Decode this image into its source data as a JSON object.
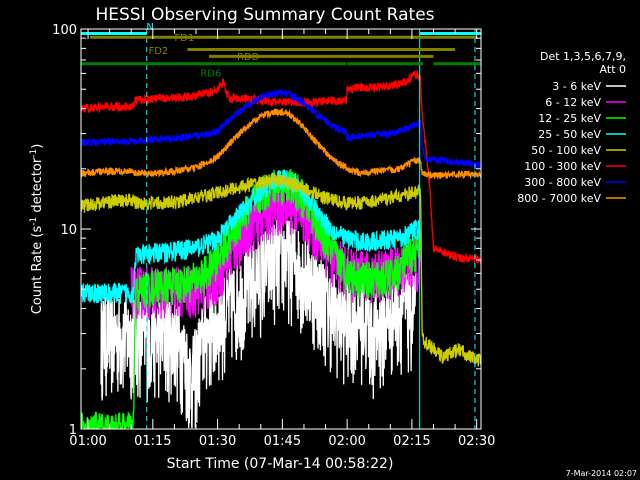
{
  "chart_data": {
    "type": "line",
    "title": "HESSI Observing Summary Count Rates",
    "xlabel": "Start Time (07-Mar-14 00:58:22)",
    "ylabel_parts": [
      "Count Rate (s",
      "-1",
      " detector",
      "-1",
      ")"
    ],
    "ylabel": "Count Rate (s-1 detector-1)",
    "y_scale": "log",
    "ylim": [
      1,
      100
    ],
    "y_ticks": [
      {
        "v": 1,
        "label": "1"
      },
      {
        "v": 10,
        "label": "10"
      },
      {
        "v": 100,
        "label": "100"
      }
    ],
    "xlim_min": [
      58.37,
      151.0
    ],
    "x_ticks": [
      {
        "t": 60,
        "label": "01:00"
      },
      {
        "t": 75,
        "label": "01:15"
      },
      {
        "t": 90,
        "label": "01:30"
      },
      {
        "t": 105,
        "label": "01:45"
      },
      {
        "t": 120,
        "label": "02:00"
      },
      {
        "t": 135,
        "label": "02:15"
      },
      {
        "t": 150,
        "label": "02:30"
      }
    ],
    "x_minor_step_min": 5,
    "legend_header": [
      "Det 1,3,5,6,7,9,",
      "Att 0"
    ],
    "legend_placement": "right",
    "series": [
      {
        "name": "3 - 6 keV",
        "color": "#ffffff",
        "points": [
          [
            58.4,
            3.0
          ],
          [
            71,
            3.0
          ],
          [
            72,
            3.0
          ],
          [
            80,
            3.0
          ],
          [
            82,
            2.5
          ],
          [
            84,
            1.8
          ],
          [
            87,
            3.0
          ],
          [
            90,
            3.5
          ],
          [
            92,
            4.0
          ],
          [
            94,
            4.5
          ],
          [
            96,
            5.0
          ],
          [
            98,
            5.6
          ],
          [
            100,
            6.3
          ],
          [
            102,
            6.9
          ],
          [
            104,
            7.3
          ],
          [
            106,
            7.4
          ],
          [
            108,
            7.0
          ],
          [
            110,
            6.3
          ],
          [
            112,
            5.5
          ],
          [
            114,
            4.8
          ],
          [
            116,
            4.2
          ],
          [
            118,
            3.8
          ],
          [
            120,
            3.5
          ],
          [
            122,
            3.8
          ],
          [
            124,
            3.6
          ],
          [
            126,
            3.0
          ],
          [
            128,
            3.3
          ],
          [
            130,
            3.8
          ],
          [
            132,
            4.2
          ],
          [
            134,
            4.0
          ],
          [
            136,
            4.1
          ],
          [
            137,
            4.1
          ]
        ],
        "noise": 0.55,
        "visible_from": 63,
        "visible_to": 136
      },
      {
        "name": "6 - 12 keV",
        "color": "#ff00ff",
        "points": [
          [
            58.4,
            5.0
          ],
          [
            71,
            5.0
          ],
          [
            72,
            5.0
          ],
          [
            80,
            5.0
          ],
          [
            84,
            5.0
          ],
          [
            88,
            5.4
          ],
          [
            90,
            6.0
          ],
          [
            92,
            7.0
          ],
          [
            94,
            8.2
          ],
          [
            96,
            9.5
          ],
          [
            98,
            10.8
          ],
          [
            100,
            11.8
          ],
          [
            102,
            12.6
          ],
          [
            104,
            13.2
          ],
          [
            106,
            13.5
          ],
          [
            108,
            13.0
          ],
          [
            110,
            11.8
          ],
          [
            112,
            10.3
          ],
          [
            114,
            8.8
          ],
          [
            116,
            7.6
          ],
          [
            118,
            6.8
          ],
          [
            120,
            6.3
          ],
          [
            122,
            6.0
          ],
          [
            126,
            6.0
          ],
          [
            130,
            6.2
          ],
          [
            134,
            6.8
          ],
          [
            137,
            6.8
          ]
        ],
        "noise": 0.3,
        "visible_from": 70,
        "visible_to": 137
      },
      {
        "name": "12 - 25 keV",
        "color": "#00ff00",
        "points": [
          [
            58.4,
            1.0
          ],
          [
            70.5,
            1.0
          ],
          [
            71,
            4.8
          ],
          [
            75,
            5.2
          ],
          [
            80,
            5.3
          ],
          [
            84,
            5.5
          ],
          [
            86,
            5.8
          ],
          [
            88,
            6.3
          ],
          [
            90,
            7.2
          ],
          [
            92,
            8.5
          ],
          [
            94,
            10.0
          ],
          [
            96,
            11.8
          ],
          [
            98,
            13.5
          ],
          [
            100,
            15.0
          ],
          [
            102,
            16.0
          ],
          [
            104,
            16.8
          ],
          [
            106,
            17.0
          ],
          [
            108,
            16.0
          ],
          [
            110,
            14.2
          ],
          [
            112,
            12.0
          ],
          [
            114,
            9.8
          ],
          [
            116,
            8.2
          ],
          [
            118,
            7.0
          ],
          [
            120,
            6.2
          ],
          [
            122,
            5.8
          ],
          [
            126,
            5.6
          ],
          [
            130,
            5.8
          ],
          [
            132,
            6.3
          ],
          [
            134,
            7.2
          ],
          [
            136,
            7.8
          ],
          [
            137,
            8.0
          ]
        ],
        "noise": 0.22,
        "visible_from": 58.4,
        "visible_to": 137
      },
      {
        "name": "25 - 50 keV",
        "color": "#00ffff",
        "points": [
          [
            58.4,
            4.8
          ],
          [
            70.5,
            4.8
          ],
          [
            71,
            7.3
          ],
          [
            75,
            7.6
          ],
          [
            80,
            7.8
          ],
          [
            84,
            8.0
          ],
          [
            88,
            8.5
          ],
          [
            90,
            9.0
          ],
          [
            92,
            10.0
          ],
          [
            94,
            11.2
          ],
          [
            96,
            12.5
          ],
          [
            98,
            14.0
          ],
          [
            100,
            15.5
          ],
          [
            102,
            16.8
          ],
          [
            104,
            17.6
          ],
          [
            106,
            18.0
          ],
          [
            108,
            17.0
          ],
          [
            110,
            15.2
          ],
          [
            112,
            13.2
          ],
          [
            114,
            11.5
          ],
          [
            116,
            10.2
          ],
          [
            118,
            9.4
          ],
          [
            120,
            9.0
          ],
          [
            122,
            8.8
          ],
          [
            124,
            8.6
          ],
          [
            128,
            8.8
          ],
          [
            132,
            9.0
          ],
          [
            134,
            9.5
          ],
          [
            136,
            10.0
          ],
          [
            137,
            10.0
          ]
        ],
        "noise": 0.12,
        "visible_from": 58.4,
        "visible_to": 137
      },
      {
        "name": "50 - 100 keV",
        "color": "#cccc00",
        "points": [
          [
            58.4,
            13.0
          ],
          [
            60,
            13.2
          ],
          [
            65,
            13.8
          ],
          [
            70.5,
            14.0
          ],
          [
            71,
            13.5
          ],
          [
            76,
            13.5
          ],
          [
            80,
            13.6
          ],
          [
            84,
            14.2
          ],
          [
            88,
            14.8
          ],
          [
            90,
            15.2
          ],
          [
            94,
            16.0
          ],
          [
            98,
            16.8
          ],
          [
            102,
            17.4
          ],
          [
            104,
            17.6
          ],
          [
            106,
            17.2
          ],
          [
            110,
            16.0
          ],
          [
            114,
            14.6
          ],
          [
            118,
            13.8
          ],
          [
            120,
            13.5
          ],
          [
            124,
            13.6
          ],
          [
            128,
            14.0
          ],
          [
            132,
            14.6
          ],
          [
            136,
            15.3
          ],
          [
            137,
            15.8
          ],
          [
            137.4,
            2.8
          ],
          [
            142,
            2.3
          ],
          [
            146,
            2.5
          ],
          [
            150,
            2.2
          ],
          [
            151,
            2.2
          ]
        ],
        "noise": 0.08,
        "visible_from": 58.4,
        "visible_to": 151
      },
      {
        "name": "100 - 300 keV",
        "color": "#ff0000",
        "points": [
          [
            58.4,
            40.0
          ],
          [
            65,
            41.0
          ],
          [
            70.5,
            41.0
          ],
          [
            71,
            44.0
          ],
          [
            76,
            45.0
          ],
          [
            80,
            45.5
          ],
          [
            84,
            46.0
          ],
          [
            88,
            48.0
          ],
          [
            90,
            50.0
          ],
          [
            91.5,
            55.0
          ],
          [
            92,
            48.0
          ],
          [
            93,
            45.0
          ],
          [
            94,
            45.5
          ],
          [
            96,
            45.0
          ],
          [
            100,
            44.0
          ],
          [
            104,
            43.0
          ],
          [
            108,
            43.0
          ],
          [
            112,
            43.0
          ],
          [
            116,
            44.0
          ],
          [
            119.8,
            43.5
          ],
          [
            120,
            50.0
          ],
          [
            122,
            51.0
          ],
          [
            126,
            51.0
          ],
          [
            130,
            52.0
          ],
          [
            134,
            55.0
          ],
          [
            136,
            60.0
          ],
          [
            137,
            56.0
          ],
          [
            137.4,
            36.0
          ],
          [
            139,
            18.0
          ],
          [
            140,
            8.0
          ],
          [
            146,
            7.2
          ],
          [
            151,
            7.0
          ]
        ],
        "noise": 0.05,
        "visible_from": 58.4,
        "visible_to": 151
      },
      {
        "name": "300 - 800 keV",
        "color": "#0000ff",
        "points": [
          [
            58.4,
            27.0
          ],
          [
            65,
            27.5
          ],
          [
            70.5,
            27.5
          ],
          [
            71,
            27.5
          ],
          [
            76,
            28.0
          ],
          [
            80,
            28.5
          ],
          [
            84,
            29.0
          ],
          [
            88,
            30.0
          ],
          [
            90,
            31.0
          ],
          [
            92,
            34.0
          ],
          [
            94,
            37.0
          ],
          [
            96,
            40.0
          ],
          [
            98,
            43.0
          ],
          [
            100,
            45.5
          ],
          [
            102,
            47.0
          ],
          [
            104,
            48.0
          ],
          [
            106,
            47.5
          ],
          [
            108,
            45.5
          ],
          [
            110,
            42.5
          ],
          [
            112,
            39.0
          ],
          [
            114,
            36.0
          ],
          [
            116,
            33.5
          ],
          [
            118,
            31.5
          ],
          [
            119.8,
            30.5
          ],
          [
            120,
            28.5
          ],
          [
            122,
            29.0
          ],
          [
            126,
            29.5
          ],
          [
            130,
            30.0
          ],
          [
            134,
            32.0
          ],
          [
            136,
            33.5
          ],
          [
            137,
            34.0
          ],
          [
            137.4,
            26.0
          ],
          [
            138,
            22.5
          ],
          [
            142,
            22.0
          ],
          [
            146,
            21.5
          ],
          [
            151,
            21.0
          ]
        ],
        "noise": 0.04,
        "visible_from": 58.4,
        "visible_to": 151
      },
      {
        "name": "800 - 7000 keV",
        "color": "#ff8c00",
        "points": [
          [
            58.4,
            19.0
          ],
          [
            65,
            19.5
          ],
          [
            70.5,
            19.5
          ],
          [
            71,
            19.0
          ],
          [
            76,
            19.0
          ],
          [
            80,
            19.5
          ],
          [
            84,
            20.0
          ],
          [
            88,
            21.5
          ],
          [
            90,
            23.0
          ],
          [
            92,
            25.5
          ],
          [
            94,
            28.5
          ],
          [
            96,
            31.5
          ],
          [
            98,
            34.0
          ],
          [
            100,
            36.5
          ],
          [
            102,
            38.0
          ],
          [
            104,
            38.8
          ],
          [
            106,
            38.0
          ],
          [
            108,
            35.5
          ],
          [
            110,
            32.0
          ],
          [
            112,
            28.5
          ],
          [
            114,
            25.5
          ],
          [
            116,
            23.0
          ],
          [
            118,
            21.2
          ],
          [
            119.8,
            20.5
          ],
          [
            120,
            19.5
          ],
          [
            124,
            19.2
          ],
          [
            128,
            19.5
          ],
          [
            132,
            20.0
          ],
          [
            134,
            21.0
          ],
          [
            136,
            22.0
          ],
          [
            137,
            22.0
          ],
          [
            137.4,
            19.0
          ],
          [
            140,
            18.5
          ],
          [
            146,
            18.8
          ],
          [
            151,
            18.8
          ]
        ],
        "noise": 0.04,
        "visible_from": 58.4,
        "visible_to": 151
      }
    ],
    "attenuator_bars": [
      {
        "label": "N",
        "color": "#00ffff",
        "y": 95,
        "label_pos": [
          73.5,
          99
        ],
        "spans": [
          [
            58.4,
            73.6
          ],
          [
            136.8,
            151
          ]
        ]
      },
      {
        "label": "FD1",
        "color": "#808000",
        "y": 91,
        "label_pos": [
          80,
          87
        ],
        "spans": [
          [
            60.5,
            150
          ]
        ]
      },
      {
        "label": "FD2",
        "color": "#808000",
        "y": 79,
        "label_pos": [
          74,
          75
        ],
        "spans": [
          [
            83,
            145
          ]
        ]
      },
      {
        "label": "RDD",
        "color": "#808000",
        "y": 73,
        "label_pos": [
          94.5,
          70
        ],
        "spans": [
          [
            88,
            140
          ]
        ]
      },
      {
        "label": "RD6",
        "color": "#008000",
        "y": 67,
        "label_pos": [
          86,
          58
        ],
        "spans": [
          [
            58.4,
            119.8
          ],
          [
            120,
            137.6
          ],
          [
            140,
            151
          ]
        ]
      }
    ],
    "vertical_markers": [
      {
        "t": 73.6,
        "style": "dashed",
        "color": "#00ffff"
      },
      {
        "t": 136.8,
        "style": "solid",
        "color": "#00ffff"
      },
      {
        "t": 149.6,
        "style": "dashed",
        "color": "#00ffff"
      }
    ]
  },
  "footer": {
    "timestamp": "7-Mar-2014 02:07"
  }
}
